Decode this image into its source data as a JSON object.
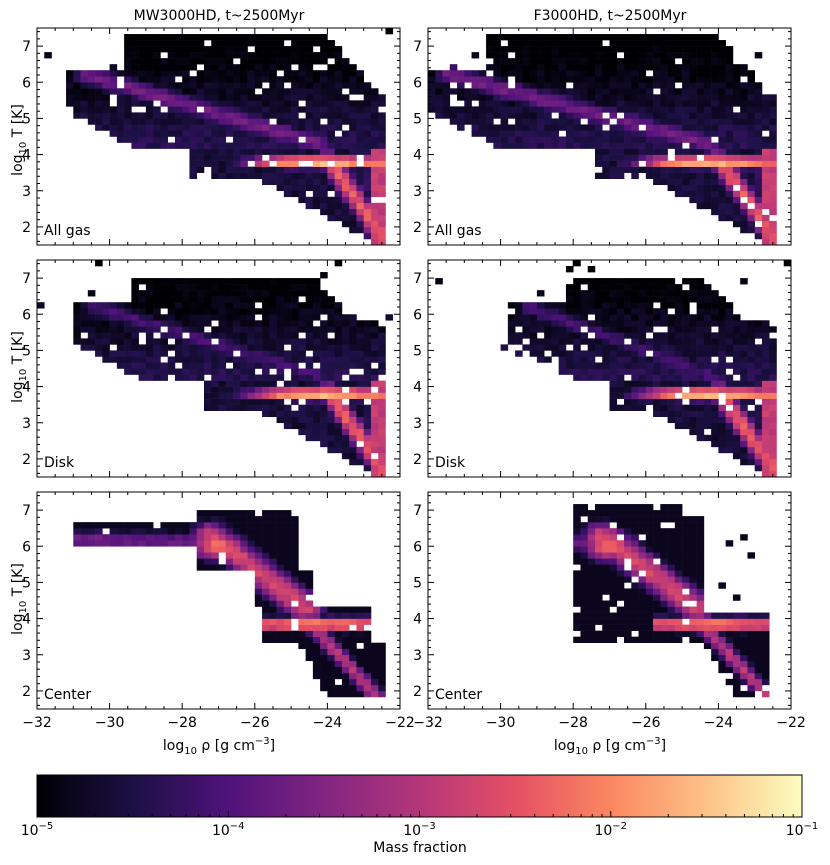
{
  "figure": {
    "colorbar": {
      "label": "Mass fraction",
      "scale": "log",
      "range": [
        1e-05,
        0.1
      ],
      "colormap": "magma",
      "tick_labels": [
        {
          "base": "10",
          "exp": "−5"
        },
        {
          "base": "10",
          "exp": "−4"
        },
        {
          "base": "10",
          "exp": "−3"
        },
        {
          "base": "10",
          "exp": "−2"
        },
        {
          "base": "10",
          "exp": "−1"
        }
      ]
    }
  },
  "chart_data": [
    {
      "type": "heatmap",
      "title": "MW3000HD, t~2500Myr",
      "annotation": "All gas",
      "xlabel": "",
      "ylabel": "log10 T [K]",
      "xlim": [
        -32,
        -22
      ],
      "ylim": [
        1.5,
        7.5
      ],
      "x_ticks": [
        "−32",
        "−30",
        "−28",
        "−26",
        "−24",
        "−22"
      ],
      "y_ticks": [
        "2",
        "3",
        "4",
        "5",
        "6",
        "7"
      ],
      "distribution": "broad",
      "extent_x": [
        -31.2,
        -22.4
      ],
      "peak_mass_fraction": 0.03,
      "rho_min_at_T4": -27.8
    },
    {
      "type": "heatmap",
      "title": "F3000HD, t~2500Myr",
      "annotation": "All gas",
      "xlabel": "",
      "ylabel": "",
      "xlim": [
        -32,
        -22
      ],
      "ylim": [
        1.5,
        7.5
      ],
      "x_ticks": [
        "−32",
        "−30",
        "−28",
        "−26",
        "−24",
        "−22"
      ],
      "y_ticks": [
        "2",
        "3",
        "4",
        "5",
        "6",
        "7"
      ],
      "distribution": "broad",
      "extent_x": [
        -32,
        -22.4
      ],
      "peak_mass_fraction": 0.03,
      "rho_min_at_T4": -27.5
    },
    {
      "type": "heatmap",
      "title": "",
      "annotation": "Disk",
      "xlabel": "",
      "ylabel": "log10 T [K]",
      "xlim": [
        -32,
        -22
      ],
      "ylim": [
        1.5,
        7.5
      ],
      "x_ticks": [
        "−32",
        "−30",
        "−28",
        "−26",
        "−24",
        "−22"
      ],
      "y_ticks": [
        "2",
        "3",
        "4",
        "5",
        "6",
        "7"
      ],
      "distribution": "disk",
      "extent_x": [
        -31.0,
        -22.4
      ],
      "peak_mass_fraction": 0.03,
      "rho_min_at_T4": -27.5
    },
    {
      "type": "heatmap",
      "title": "",
      "annotation": "Disk",
      "xlabel": "",
      "ylabel": "",
      "xlim": [
        -32,
        -22
      ],
      "ylim": [
        1.5,
        7.5
      ],
      "x_ticks": [
        "−32",
        "−30",
        "−28",
        "−26",
        "−24",
        "−22"
      ],
      "y_ticks": [
        "2",
        "3",
        "4",
        "5",
        "6",
        "7"
      ],
      "distribution": "disk",
      "extent_x": [
        -29.8,
        -22.4
      ],
      "peak_mass_fraction": 0.03,
      "rho_min_at_T4": -27.0
    },
    {
      "type": "heatmap",
      "title": "",
      "annotation": "Center",
      "xlabel": "log10 ρ [g cm^-3]",
      "ylabel": "log10 T [K]",
      "xlim": [
        -32,
        -22
      ],
      "ylim": [
        1.5,
        7.5
      ],
      "x_ticks": [
        "−32",
        "−30",
        "−28",
        "−26",
        "−24",
        "−22"
      ],
      "y_ticks": [
        "2",
        "3",
        "4",
        "5",
        "6",
        "7"
      ],
      "distribution": "center",
      "extent_x": [
        -31.0,
        -22.5
      ],
      "peak_mass_fraction": 0.01,
      "rho_min_at_T4": -25.5
    },
    {
      "type": "heatmap",
      "title": "",
      "annotation": "Center",
      "xlabel": "log10 ρ [g cm^-3]",
      "ylabel": "",
      "xlim": [
        -32,
        -22
      ],
      "ylim": [
        1.5,
        7.5
      ],
      "x_ticks": [
        "−32",
        "−30",
        "−28",
        "−26",
        "−24",
        "−22"
      ],
      "y_ticks": [
        "2",
        "3",
        "4",
        "5",
        "6",
        "7"
      ],
      "distribution": "center",
      "extent_x": [
        -28.0,
        -22.5
      ],
      "peak_mass_fraction": 0.01,
      "rho_min_at_T4": -27.0
    }
  ]
}
